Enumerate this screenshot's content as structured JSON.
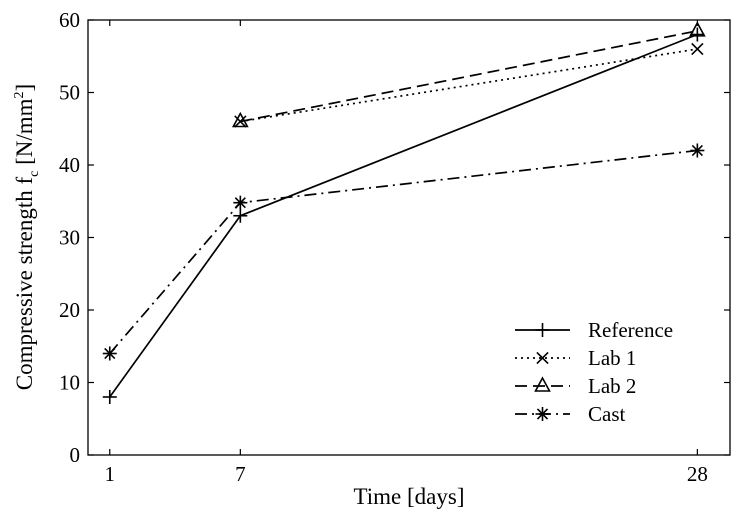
{
  "chart_data": {
    "type": "line",
    "xlabel": "Time [days]",
    "ylabel": {
      "prefix": "Compressive strength f",
      "subscript": "c",
      "unit_open": " [N/mm",
      "superscript": "2",
      "unit_close": "]"
    },
    "x_ticks": [
      1,
      7,
      28
    ],
    "y_ticks": [
      0,
      10,
      20,
      30,
      40,
      50,
      60
    ],
    "xlim": [
      0,
      29.5
    ],
    "ylim": [
      0,
      60
    ],
    "grid": false,
    "legend_position": "bottom-right",
    "series": [
      {
        "name": "Reference",
        "marker": "plus",
        "dash": "solid",
        "x": [
          1,
          7,
          28
        ],
        "y": [
          8,
          33,
          58
        ]
      },
      {
        "name": "Lab 1",
        "marker": "x",
        "dash": "dotted",
        "x": [
          7,
          28
        ],
        "y": [
          46,
          56
        ]
      },
      {
        "name": "Lab 2",
        "marker": "triangle",
        "dash": "dashed",
        "x": [
          7,
          28
        ],
        "y": [
          46,
          58.5
        ]
      },
      {
        "name": "Cast",
        "marker": "star",
        "dash": "dashdot",
        "x": [
          1,
          7,
          28
        ],
        "y": [
          14,
          34.8,
          42
        ]
      }
    ]
  }
}
